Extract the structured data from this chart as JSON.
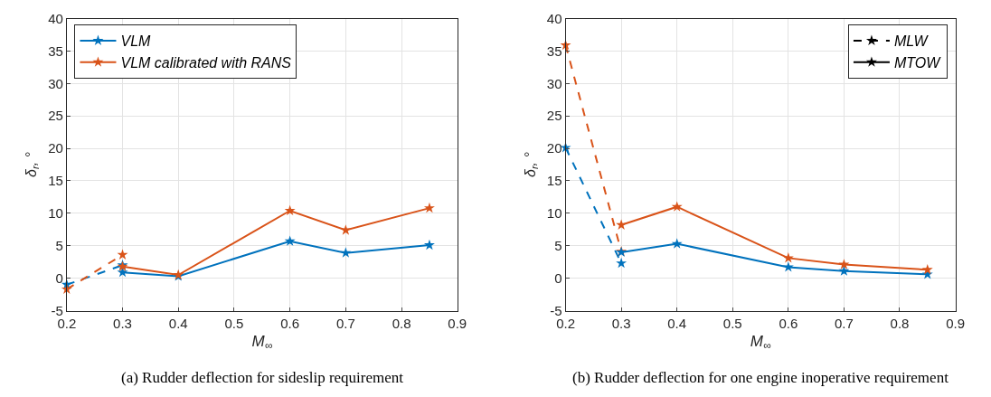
{
  "chart_data": [
    {
      "type": "line",
      "xlabel": "M$_{∞}$",
      "ylabel": "δ$_{r}$, °",
      "xlim": [
        0.2,
        0.9
      ],
      "xticks": [
        0.2,
        0.3,
        0.4,
        0.5,
        0.6,
        0.7,
        0.8,
        0.9
      ],
      "ylim": [
        -5,
        40
      ],
      "yticks": [
        -5,
        0,
        5,
        10,
        15,
        20,
        25,
        30,
        35,
        40
      ],
      "grid": true,
      "legend": "top left",
      "marker": "star",
      "annotations": [
        "(a) Rudder deflection for sideslip requirement"
      ],
      "series": [
        {
          "color": "#0072bd",
          "x": [
            0.2,
            0.3
          ],
          "values": [
            -1.0,
            2.0
          ],
          "line_style": "dashed"
        },
        {
          "color": "#d95319",
          "x": [
            0.2,
            0.3
          ],
          "values": [
            -1.7,
            3.6
          ],
          "line_style": "dashed"
        },
        {
          "name": "VLM",
          "color": "#0072bd",
          "x": [
            0.3,
            0.4,
            0.6,
            0.7,
            0.85
          ],
          "values": [
            0.9,
            0.3,
            5.7,
            3.9,
            5.1
          ],
          "line_style": "solid"
        },
        {
          "name": "VLM calibrated with RANS",
          "color": "#d95319",
          "x": [
            0.3,
            0.4,
            0.6,
            0.7,
            0.85
          ],
          "values": [
            1.8,
            0.5,
            10.4,
            7.4,
            10.8
          ],
          "line_style": "solid"
        }
      ]
    },
    {
      "type": "line",
      "xlabel": "M$_{∞}$",
      "ylabel": "δ$_{r}$, °",
      "xlim": [
        0.2,
        0.9
      ],
      "xticks": [
        0.2,
        0.3,
        0.4,
        0.5,
        0.6,
        0.7,
        0.8,
        0.9
      ],
      "ylim": [
        -5,
        40
      ],
      "yticks": [
        -5,
        0,
        5,
        10,
        15,
        20,
        25,
        30,
        35,
        40
      ],
      "grid": true,
      "legend": "top right",
      "marker": "star",
      "annotations": [
        "(b) Rudder deflection for one engine inoperative requirement"
      ],
      "series": [
        {
          "color": "#0072bd",
          "x": [
            0.2,
            0.3
          ],
          "values": [
            20.1,
            2.3
          ],
          "line_style": "dashed"
        },
        {
          "color": "#d95319",
          "x": [
            0.2,
            0.3
          ],
          "values": [
            35.9,
            4.1
          ],
          "line_style": "dashed"
        },
        {
          "color": "#0072bd",
          "x": [
            0.3,
            0.4,
            0.6,
            0.7,
            0.85
          ],
          "values": [
            4.0,
            5.3,
            1.7,
            1.1,
            0.6
          ],
          "line_style": "solid"
        },
        {
          "color": "#d95319",
          "x": [
            0.3,
            0.4,
            0.6,
            0.7,
            0.85
          ],
          "values": [
            8.2,
            11.0,
            3.1,
            2.1,
            1.3
          ],
          "line_style": "solid"
        },
        {
          "name": "MLW",
          "color": "#000000",
          "values": [
            null
          ],
          "line_style": "dashed"
        },
        {
          "name": "MTOW",
          "color": "#000000",
          "values": [
            null
          ],
          "line_style": "solid"
        }
      ]
    }
  ]
}
